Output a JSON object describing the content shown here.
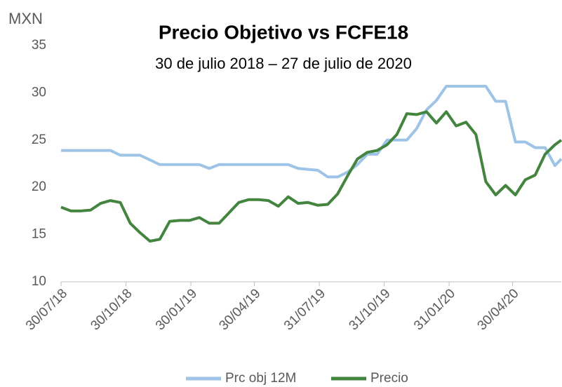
{
  "chart_data": {
    "type": "line",
    "title": "Precio Objetivo vs FCFE18",
    "subtitle": "30 de julio 2018 – 27 de julio de 2020",
    "y_label": "MXN",
    "x": [
      "2018-07-30",
      "2018-08-13",
      "2018-08-27",
      "2018-09-10",
      "2018-09-24",
      "2018-10-08",
      "2018-10-22",
      "2018-11-05",
      "2018-11-19",
      "2018-12-03",
      "2018-12-17",
      "2018-12-31",
      "2019-01-14",
      "2019-01-28",
      "2019-02-11",
      "2019-02-25",
      "2019-03-11",
      "2019-03-25",
      "2019-04-08",
      "2019-04-22",
      "2019-05-06",
      "2019-05-20",
      "2019-06-03",
      "2019-06-17",
      "2019-07-01",
      "2019-07-15",
      "2019-07-29",
      "2019-08-12",
      "2019-08-26",
      "2019-09-09",
      "2019-09-23",
      "2019-10-07",
      "2019-10-21",
      "2019-11-04",
      "2019-11-18",
      "2019-12-02",
      "2019-12-16",
      "2019-12-30",
      "2020-01-13",
      "2020-01-27",
      "2020-02-10",
      "2020-02-24",
      "2020-03-09",
      "2020-03-23",
      "2020-04-06",
      "2020-04-20",
      "2020-05-04",
      "2020-05-18",
      "2020-06-01",
      "2020-06-15",
      "2020-06-29",
      "2020-07-08"
    ],
    "series": [
      {
        "name": "Prc obj 12M",
        "color": "#9dc3e6",
        "values": [
          23.9,
          23.9,
          23.9,
          23.9,
          23.9,
          23.9,
          23.4,
          23.4,
          23.4,
          22.9,
          22.4,
          22.4,
          22.4,
          22.4,
          22.4,
          22.0,
          22.4,
          22.4,
          22.4,
          22.4,
          22.4,
          22.4,
          22.4,
          22.4,
          22.0,
          21.9,
          21.8,
          21.1,
          21.1,
          21.6,
          22.4,
          23.5,
          23.5,
          25.0,
          25.0,
          25.0,
          26.2,
          28.2,
          29.2,
          30.7,
          30.7,
          30.7,
          30.7,
          30.7,
          29.1,
          29.1,
          24.8,
          24.8,
          24.2,
          24.2,
          22.3,
          23.0
        ]
      },
      {
        "name": "Precio",
        "color": "#43853f",
        "values": [
          17.9,
          17.5,
          17.5,
          17.6,
          18.3,
          18.6,
          18.4,
          16.2,
          15.2,
          14.3,
          14.5,
          16.4,
          16.5,
          16.5,
          16.8,
          16.2,
          16.2,
          17.3,
          18.4,
          18.7,
          18.7,
          18.6,
          18.0,
          19.0,
          18.3,
          18.4,
          18.1,
          18.2,
          19.3,
          21.2,
          23.0,
          23.7,
          23.9,
          24.5,
          25.6,
          27.8,
          27.7,
          28.0,
          26.8,
          28.0,
          26.5,
          26.9,
          25.6,
          20.6,
          19.2,
          20.2,
          19.2,
          20.8,
          21.3,
          23.5,
          24.5,
          25.0
        ]
      }
    ],
    "xlim": [
      "2018-07-30",
      "2020-07-08"
    ],
    "xticks": [
      {
        "value": "2018-07-30",
        "label": "30/07/18"
      },
      {
        "value": "2018-10-30",
        "label": "30/10/18"
      },
      {
        "value": "2019-01-30",
        "label": "30/01/19"
      },
      {
        "value": "2019-04-30",
        "label": "30/04/19"
      },
      {
        "value": "2019-07-31",
        "label": "31/07/19"
      },
      {
        "value": "2019-10-31",
        "label": "31/10/19"
      },
      {
        "value": "2020-01-31",
        "label": "31/01/20"
      },
      {
        "value": "2020-04-30",
        "label": "30/04/20"
      }
    ],
    "ylim": [
      10,
      35
    ],
    "yticks": [
      10,
      15,
      20,
      25,
      30,
      35
    ],
    "grid": false,
    "legend": "bottom"
  }
}
